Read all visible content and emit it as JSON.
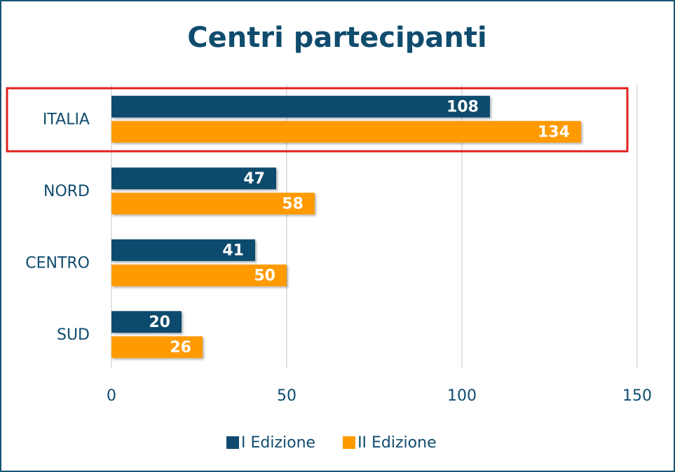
{
  "chart_data": {
    "type": "bar",
    "orientation": "horizontal",
    "title": "Centri partecipanti",
    "categories": [
      "ITALIA",
      "NORD",
      "CENTRO",
      "SUD"
    ],
    "series": [
      {
        "name": "I Edizione",
        "color": "#0f4c6e",
        "values": [
          108,
          47,
          41,
          20
        ]
      },
      {
        "name": "II Edizione",
        "color": "#ff9a00",
        "values": [
          134,
          58,
          50,
          26
        ]
      }
    ],
    "xlim": [
      0,
      150
    ],
    "xticks": [
      0,
      50,
      100,
      150
    ],
    "grid": true,
    "legend": "bottom"
  }
}
